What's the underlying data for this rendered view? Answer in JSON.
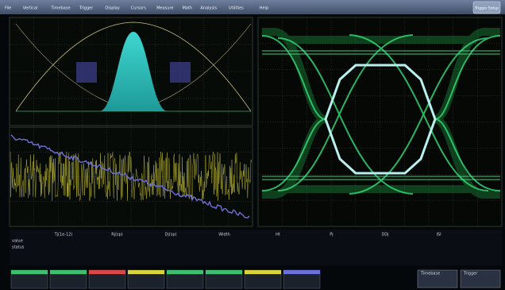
{
  "menu": {
    "items": [
      "File",
      "Vertical",
      "Timebase",
      "Trigger",
      "Display",
      "Cursors",
      "Measure",
      "Math",
      "Analysis",
      "Utilities",
      "Help"
    ],
    "button": "Trigger Setup"
  },
  "measurements": {
    "headers": [
      "Tj(1e-12)",
      "Rj(sp)",
      "Dj(sp)",
      "Width",
      "Ht",
      "Pj",
      "DDj",
      "ISI"
    ],
    "rows": [
      "value",
      "status"
    ]
  },
  "status": {
    "timebase": "Timebase",
    "trigger": "Trigger"
  }
}
